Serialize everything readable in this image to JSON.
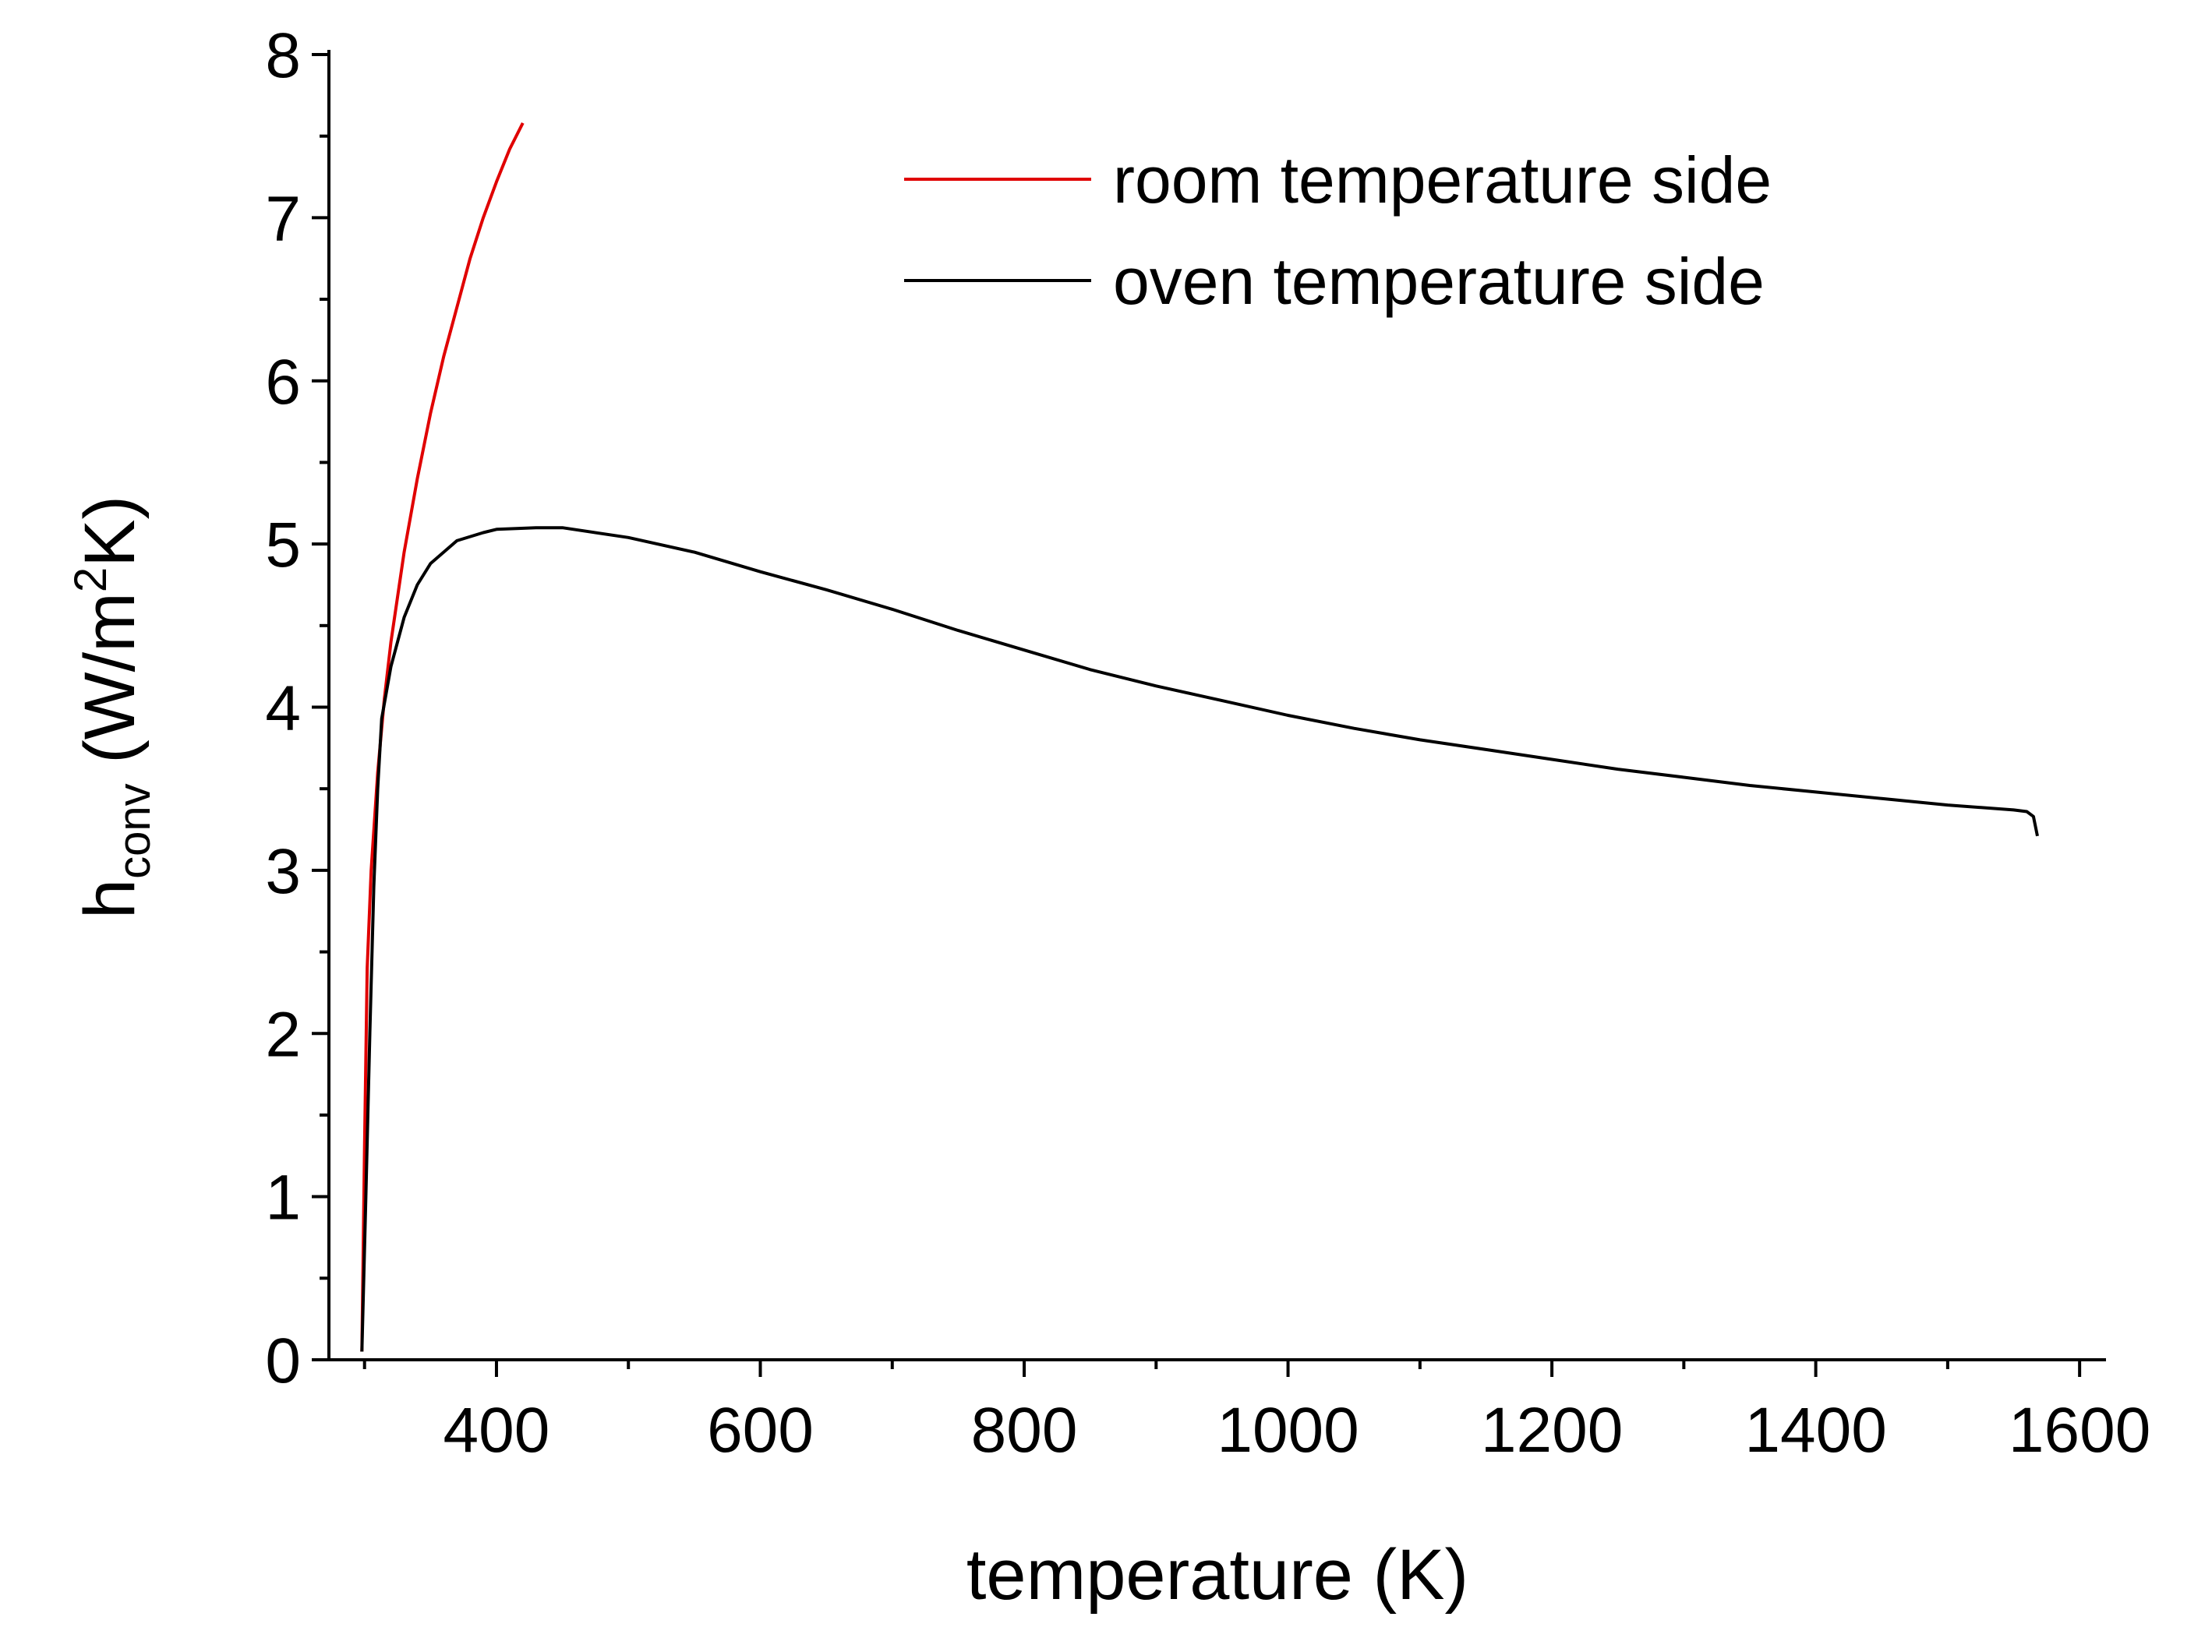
{
  "chart_data": {
    "type": "line",
    "title": "",
    "xlabel": "temperature (K)",
    "ylabel": {
      "base": "h",
      "subscript": "conv",
      "units_open": " (W/m",
      "units_sup": "2",
      "units_close": "K)"
    },
    "xlim": [
      273,
      1620
    ],
    "ylim": [
      0,
      8
    ],
    "xticks": [
      400,
      600,
      800,
      1000,
      1200,
      1400,
      1600
    ],
    "yticks": [
      0,
      1,
      2,
      3,
      4,
      5,
      6,
      7,
      8
    ],
    "x_minor_step": 100,
    "y_minor_step": 0.5,
    "grid": false,
    "legend_position": "top-right",
    "series": [
      {
        "name": "room temperature side",
        "color": "#e00000",
        "points": [
          [
            298,
            0.05
          ],
          [
            300,
            1.3
          ],
          [
            302,
            2.4
          ],
          [
            305,
            3.0
          ],
          [
            310,
            3.6
          ],
          [
            315,
            4.05
          ],
          [
            320,
            4.4
          ],
          [
            330,
            4.95
          ],
          [
            340,
            5.4
          ],
          [
            350,
            5.8
          ],
          [
            360,
            6.15
          ],
          [
            370,
            6.45
          ],
          [
            380,
            6.75
          ],
          [
            390,
            7.0
          ],
          [
            400,
            7.22
          ],
          [
            410,
            7.42
          ],
          [
            420,
            7.58
          ]
        ]
      },
      {
        "name": "oven temperature side",
        "color": "#000000",
        "points": [
          [
            298,
            0.05
          ],
          [
            301,
            1.0
          ],
          [
            304,
            2.0
          ],
          [
            307,
            2.9
          ],
          [
            310,
            3.5
          ],
          [
            313,
            3.93
          ],
          [
            320,
            4.25
          ],
          [
            330,
            4.55
          ],
          [
            340,
            4.75
          ],
          [
            350,
            4.88
          ],
          [
            370,
            5.02
          ],
          [
            390,
            5.07
          ],
          [
            400,
            5.09
          ],
          [
            430,
            5.1
          ],
          [
            450,
            5.1
          ],
          [
            500,
            5.04
          ],
          [
            550,
            4.95
          ],
          [
            600,
            4.83
          ],
          [
            650,
            4.72
          ],
          [
            700,
            4.6
          ],
          [
            750,
            4.47
          ],
          [
            800,
            4.35
          ],
          [
            850,
            4.23
          ],
          [
            900,
            4.13
          ],
          [
            950,
            4.04
          ],
          [
            1000,
            3.95
          ],
          [
            1050,
            3.87
          ],
          [
            1100,
            3.8
          ],
          [
            1150,
            3.74
          ],
          [
            1200,
            3.68
          ],
          [
            1250,
            3.62
          ],
          [
            1300,
            3.57
          ],
          [
            1350,
            3.52
          ],
          [
            1400,
            3.48
          ],
          [
            1450,
            3.44
          ],
          [
            1500,
            3.4
          ],
          [
            1550,
            3.37
          ],
          [
            1560,
            3.36
          ],
          [
            1565,
            3.33
          ],
          [
            1568,
            3.21
          ]
        ]
      }
    ]
  }
}
